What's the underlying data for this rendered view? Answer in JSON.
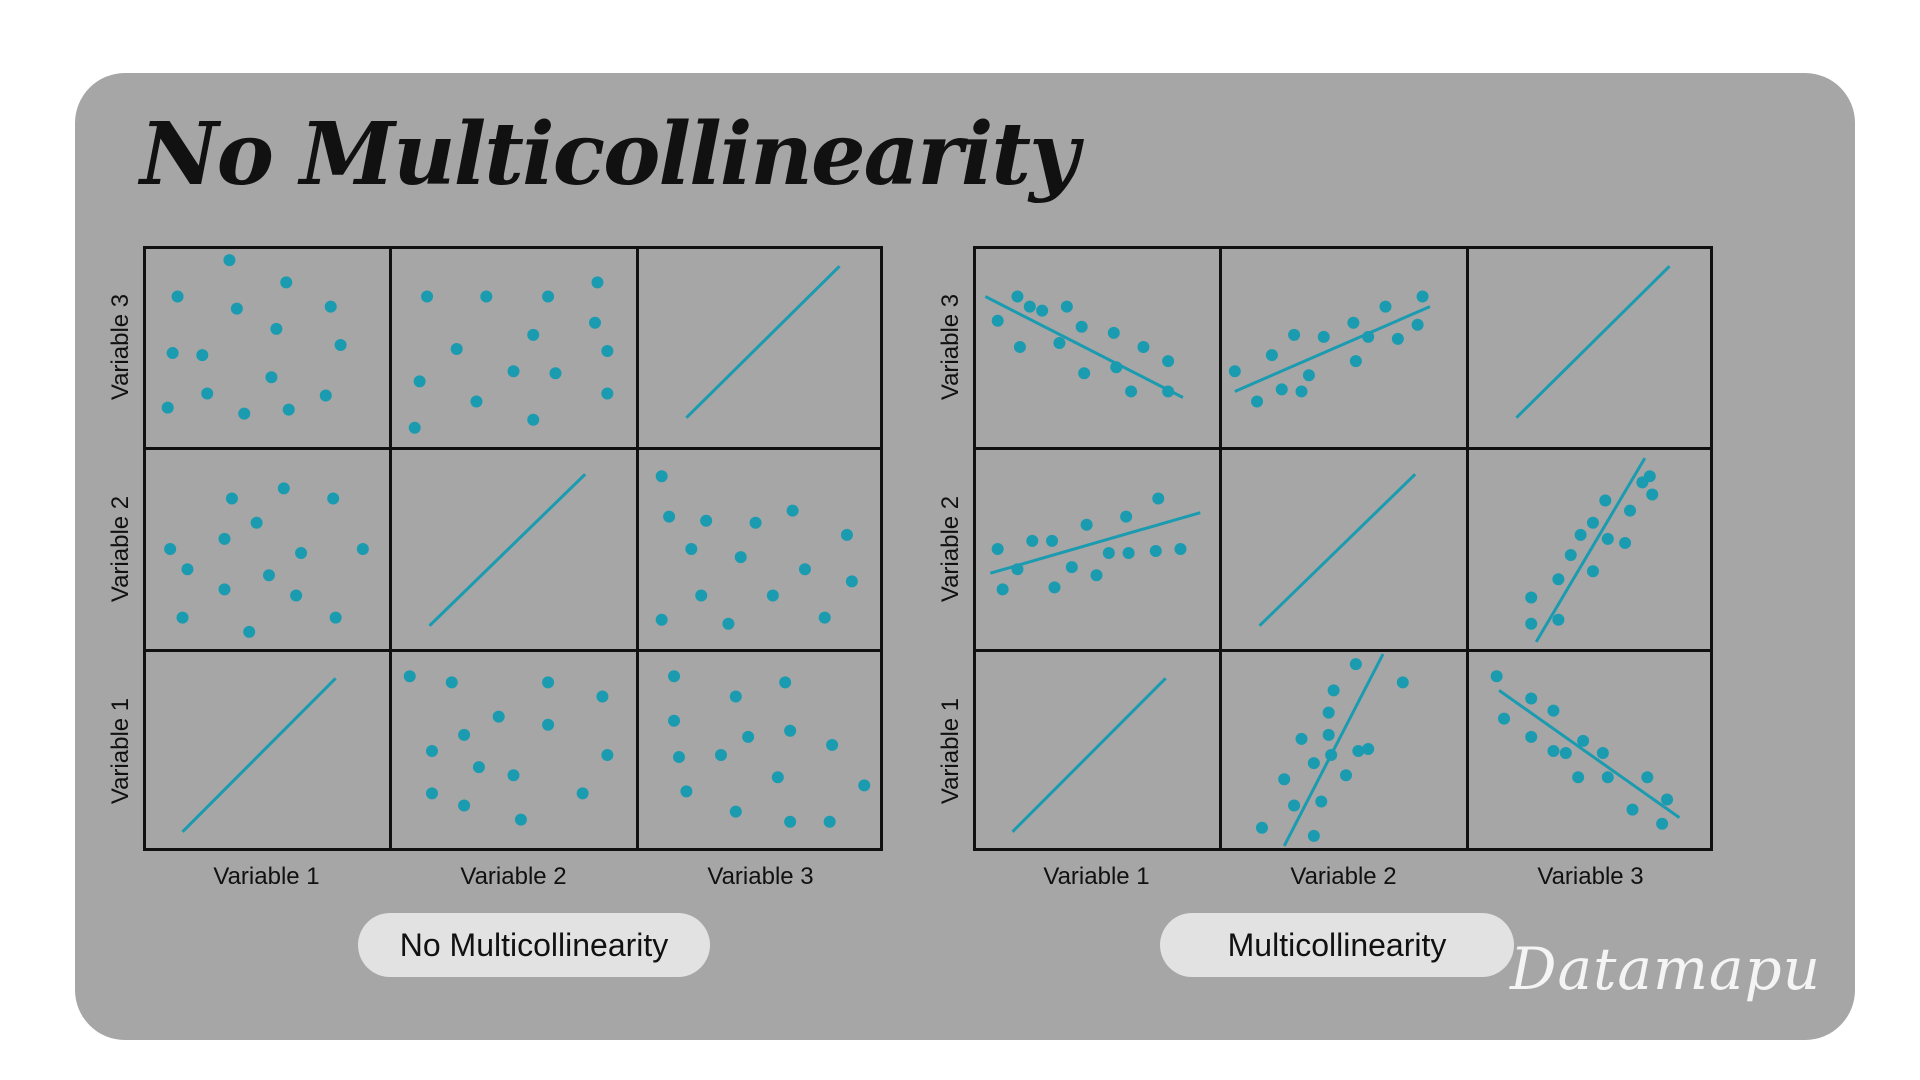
{
  "title": "No Multicollinearity",
  "brand": "Datamapu",
  "colors": {
    "card": "#a6a6a6",
    "marks": "#1a9bb0",
    "pill": "#e2e2e2",
    "ink": "#111111"
  },
  "panels": [
    {
      "label": "No Multicollinearity",
      "x_labels": [
        "Variable 1",
        "Variable 2",
        "Variable 3"
      ],
      "y_labels": [
        "Variable 3",
        "Variable 2",
        "Variable 1"
      ],
      "cells": [
        [
          {
            "type": "scatter",
            "points": [
              [
                0.14,
                0.25
              ],
              [
                0.35,
                0.07
              ],
              [
                0.58,
                0.18
              ],
              [
                0.76,
                0.3
              ],
              [
                0.38,
                0.31
              ],
              [
                0.54,
                0.41
              ],
              [
                0.8,
                0.49
              ],
              [
                0.12,
                0.53
              ],
              [
                0.24,
                0.54
              ],
              [
                0.52,
                0.65
              ],
              [
                0.26,
                0.73
              ],
              [
                0.74,
                0.74
              ],
              [
                0.1,
                0.8
              ],
              [
                0.41,
                0.83
              ],
              [
                0.59,
                0.81
              ]
            ]
          },
          {
            "type": "scatter",
            "points": [
              [
                0.15,
                0.25
              ],
              [
                0.39,
                0.25
              ],
              [
                0.64,
                0.25
              ],
              [
                0.84,
                0.18
              ],
              [
                0.83,
                0.38
              ],
              [
                0.58,
                0.44
              ],
              [
                0.27,
                0.51
              ],
              [
                0.88,
                0.52
              ],
              [
                0.12,
                0.67
              ],
              [
                0.5,
                0.62
              ],
              [
                0.67,
                0.63
              ],
              [
                0.35,
                0.77
              ],
              [
                0.88,
                0.73
              ],
              [
                0.58,
                0.86
              ],
              [
                0.1,
                0.9
              ]
            ]
          },
          {
            "type": "line",
            "line": [
              [
                0.2,
                0.85
              ],
              [
                0.82,
                0.1
              ]
            ]
          }
        ],
        [
          {
            "type": "scatter",
            "points": [
              [
                0.11,
                0.5
              ],
              [
                0.36,
                0.25
              ],
              [
                0.57,
                0.2
              ],
              [
                0.77,
                0.25
              ],
              [
                0.89,
                0.5
              ],
              [
                0.46,
                0.37
              ],
              [
                0.33,
                0.45
              ],
              [
                0.64,
                0.52
              ],
              [
                0.18,
                0.6
              ],
              [
                0.51,
                0.63
              ],
              [
                0.33,
                0.7
              ],
              [
                0.62,
                0.73
              ],
              [
                0.16,
                0.84
              ],
              [
                0.78,
                0.84
              ],
              [
                0.43,
                0.91
              ]
            ]
          },
          {
            "type": "line",
            "line": [
              [
                0.16,
                0.88
              ],
              [
                0.79,
                0.13
              ]
            ]
          },
          {
            "type": "scatter",
            "points": [
              [
                0.1,
                0.14
              ],
              [
                0.13,
                0.34
              ],
              [
                0.28,
                0.36
              ],
              [
                0.48,
                0.37
              ],
              [
                0.63,
                0.31
              ],
              [
                0.85,
                0.43
              ],
              [
                0.22,
                0.5
              ],
              [
                0.42,
                0.54
              ],
              [
                0.68,
                0.6
              ],
              [
                0.87,
                0.66
              ],
              [
                0.26,
                0.73
              ],
              [
                0.55,
                0.73
              ],
              [
                0.1,
                0.85
              ],
              [
                0.37,
                0.87
              ],
              [
                0.76,
                0.84
              ]
            ]
          }
        ],
        [
          {
            "type": "line",
            "line": [
              [
                0.16,
                0.9
              ],
              [
                0.78,
                0.14
              ]
            ]
          },
          {
            "type": "scatter",
            "points": [
              [
                0.08,
                0.13
              ],
              [
                0.25,
                0.16
              ],
              [
                0.64,
                0.16
              ],
              [
                0.86,
                0.23
              ],
              [
                0.44,
                0.33
              ],
              [
                0.64,
                0.37
              ],
              [
                0.3,
                0.42
              ],
              [
                0.17,
                0.5
              ],
              [
                0.88,
                0.52
              ],
              [
                0.36,
                0.58
              ],
              [
                0.5,
                0.62
              ],
              [
                0.17,
                0.71
              ],
              [
                0.78,
                0.71
              ],
              [
                0.3,
                0.77
              ],
              [
                0.53,
                0.84
              ]
            ]
          },
          {
            "type": "scatter",
            "points": [
              [
                0.15,
                0.13
              ],
              [
                0.4,
                0.23
              ],
              [
                0.6,
                0.16
              ],
              [
                0.15,
                0.35
              ],
              [
                0.45,
                0.43
              ],
              [
                0.62,
                0.4
              ],
              [
                0.79,
                0.47
              ],
              [
                0.17,
                0.53
              ],
              [
                0.34,
                0.52
              ],
              [
                0.57,
                0.63
              ],
              [
                0.2,
                0.7
              ],
              [
                0.92,
                0.67
              ],
              [
                0.4,
                0.8
              ],
              [
                0.62,
                0.85
              ],
              [
                0.78,
                0.85
              ]
            ]
          }
        ]
      ]
    },
    {
      "label": "Multicollinearity",
      "x_labels": [
        "Variable 1",
        "Variable 2",
        "Variable 3"
      ],
      "y_labels": [
        "Variable 3",
        "Variable 2",
        "Variable 1"
      ],
      "cells": [
        [
          {
            "type": "scatter",
            "line": [
              [
                0.05,
                0.25
              ],
              [
                0.85,
                0.75
              ]
            ],
            "points": [
              [
                0.1,
                0.37
              ],
              [
                0.18,
                0.25
              ],
              [
                0.23,
                0.3
              ],
              [
                0.28,
                0.32
              ],
              [
                0.38,
                0.3
              ],
              [
                0.19,
                0.5
              ],
              [
                0.35,
                0.48
              ],
              [
                0.44,
                0.4
              ],
              [
                0.57,
                0.43
              ],
              [
                0.45,
                0.63
              ],
              [
                0.58,
                0.6
              ],
              [
                0.69,
                0.5
              ],
              [
                0.79,
                0.57
              ],
              [
                0.64,
                0.72
              ],
              [
                0.79,
                0.72
              ]
            ]
          },
          {
            "type": "scatter",
            "line": [
              [
                0.06,
                0.72
              ],
              [
                0.85,
                0.3
              ]
            ],
            "points": [
              [
                0.06,
                0.62
              ],
              [
                0.15,
                0.77
              ],
              [
                0.21,
                0.54
              ],
              [
                0.25,
                0.71
              ],
              [
                0.3,
                0.44
              ],
              [
                0.33,
                0.72
              ],
              [
                0.36,
                0.64
              ],
              [
                0.42,
                0.45
              ],
              [
                0.54,
                0.38
              ],
              [
                0.55,
                0.57
              ],
              [
                0.6,
                0.45
              ],
              [
                0.67,
                0.3
              ],
              [
                0.72,
                0.46
              ],
              [
                0.8,
                0.39
              ],
              [
                0.82,
                0.25
              ]
            ]
          },
          {
            "type": "line",
            "line": [
              [
                0.2,
                0.85
              ],
              [
                0.82,
                0.1
              ]
            ]
          }
        ],
        [
          {
            "type": "scatter",
            "line": [
              [
                0.07,
                0.62
              ],
              [
                0.92,
                0.32
              ]
            ],
            "points": [
              [
                0.1,
                0.5
              ],
              [
                0.12,
                0.7
              ],
              [
                0.18,
                0.6
              ],
              [
                0.24,
                0.46
              ],
              [
                0.32,
                0.46
              ],
              [
                0.33,
                0.69
              ],
              [
                0.4,
                0.59
              ],
              [
                0.46,
                0.38
              ],
              [
                0.5,
                0.63
              ],
              [
                0.55,
                0.52
              ],
              [
                0.63,
                0.52
              ],
              [
                0.62,
                0.34
              ],
              [
                0.74,
                0.51
              ],
              [
                0.75,
                0.25
              ],
              [
                0.84,
                0.5
              ]
            ]
          },
          {
            "type": "line",
            "line": [
              [
                0.16,
                0.88
              ],
              [
                0.79,
                0.13
              ]
            ]
          },
          {
            "type": "scatter",
            "line": [
              [
                0.28,
                0.96
              ],
              [
                0.72,
                0.05
              ]
            ],
            "points": [
              [
                0.26,
                0.74
              ],
              [
                0.26,
                0.87
              ],
              [
                0.37,
                0.65
              ],
              [
                0.37,
                0.85
              ],
              [
                0.42,
                0.53
              ],
              [
                0.46,
                0.43
              ],
              [
                0.51,
                0.37
              ],
              [
                0.51,
                0.61
              ],
              [
                0.56,
                0.26
              ],
              [
                0.57,
                0.45
              ],
              [
                0.64,
                0.47
              ],
              [
                0.66,
                0.31
              ],
              [
                0.71,
                0.17
              ],
              [
                0.75,
                0.23
              ],
              [
                0.74,
                0.14
              ]
            ]
          }
        ],
        [
          {
            "type": "line",
            "line": [
              [
                0.16,
                0.9
              ],
              [
                0.78,
                0.14
              ]
            ]
          },
          {
            "type": "scatter",
            "line": [
              [
                0.26,
                0.97
              ],
              [
                0.66,
                0.02
              ]
            ],
            "points": [
              [
                0.17,
                0.88
              ],
              [
                0.26,
                0.64
              ],
              [
                0.3,
                0.77
              ],
              [
                0.33,
                0.44
              ],
              [
                0.38,
                0.56
              ],
              [
                0.38,
                0.92
              ],
              [
                0.41,
                0.75
              ],
              [
                0.44,
                0.42
              ],
              [
                0.44,
                0.31
              ],
              [
                0.45,
                0.52
              ],
              [
                0.46,
                0.2
              ],
              [
                0.51,
                0.62
              ],
              [
                0.55,
                0.07
              ],
              [
                0.56,
                0.5
              ],
              [
                0.6,
                0.49
              ],
              [
                0.74,
                0.16
              ]
            ]
          },
          {
            "type": "scatter",
            "line": [
              [
                0.13,
                0.2
              ],
              [
                0.86,
                0.83
              ]
            ],
            "points": [
              [
                0.12,
                0.13
              ],
              [
                0.15,
                0.34
              ],
              [
                0.26,
                0.24
              ],
              [
                0.26,
                0.43
              ],
              [
                0.35,
                0.3
              ],
              [
                0.35,
                0.5
              ],
              [
                0.4,
                0.51
              ],
              [
                0.47,
                0.45
              ],
              [
                0.45,
                0.63
              ],
              [
                0.55,
                0.51
              ],
              [
                0.57,
                0.63
              ],
              [
                0.67,
                0.79
              ],
              [
                0.73,
                0.63
              ],
              [
                0.79,
                0.86
              ],
              [
                0.81,
                0.74
              ]
            ]
          }
        ]
      ]
    }
  ]
}
